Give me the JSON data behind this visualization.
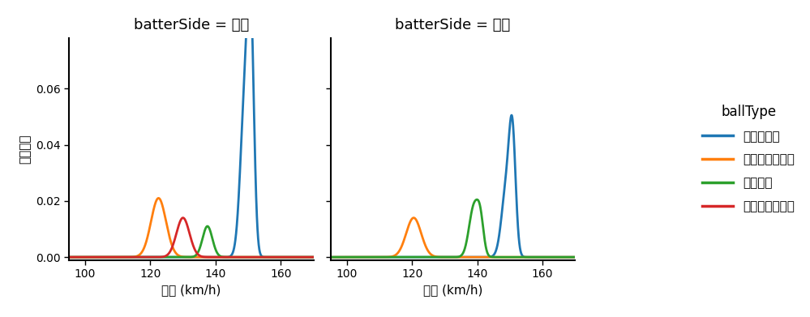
{
  "title_left": "batterSide = 左打",
  "title_right": "batterSide = 右打",
  "xlabel": "球速 (km/h)",
  "ylabel": "確率密度",
  "legend_title": "ballType",
  "legend_labels": [
    "ストレート",
    "ナックルカーブ",
    "フォーク",
    "チェンジアップ"
  ],
  "colors": [
    "#1f77b4",
    "#ff7f0e",
    "#2ca02c",
    "#d62728"
  ],
  "xlim": [
    95,
    170
  ],
  "ylim": [
    -0.001,
    0.078
  ],
  "yticks": [
    0.0,
    0.02,
    0.04,
    0.06
  ],
  "xticks": [
    100,
    120,
    140,
    160
  ],
  "left": {
    "straight": [
      {
        "mean": 149.0,
        "std": 1.4,
        "amp": 0.055
      },
      {
        "mean": 150.8,
        "std": 1.0,
        "amp": 0.072
      }
    ],
    "knuckle": [
      {
        "mean": 122.5,
        "std": 2.3,
        "amp": 0.021
      }
    ],
    "fork": [
      {
        "mean": 137.5,
        "std": 1.5,
        "amp": 0.011
      }
    ],
    "changeup": [
      {
        "mean": 130.0,
        "std": 2.0,
        "amp": 0.014
      }
    ]
  },
  "right": {
    "straight": [
      {
        "mean": 149.0,
        "std": 1.5,
        "amp": 0.025
      },
      {
        "mean": 150.8,
        "std": 1.0,
        "amp": 0.037
      }
    ],
    "knuckle": [
      {
        "mean": 120.5,
        "std": 2.3,
        "amp": 0.014
      }
    ],
    "fork": [
      {
        "mean": 139.0,
        "std": 1.5,
        "amp": 0.018
      },
      {
        "mean": 141.0,
        "std": 1.0,
        "amp": 0.01
      }
    ],
    "changeup": null
  }
}
